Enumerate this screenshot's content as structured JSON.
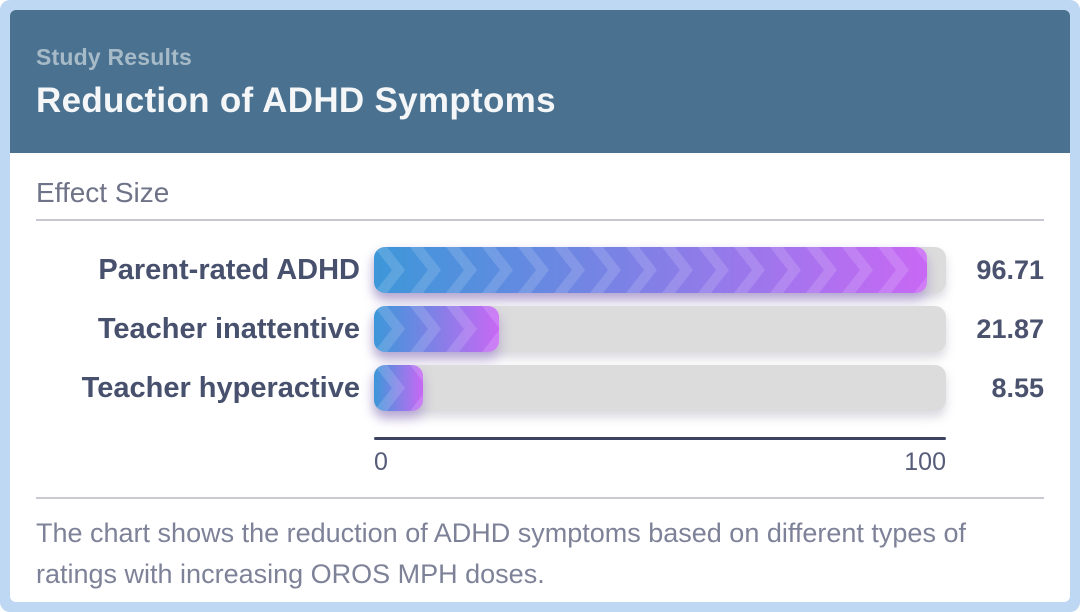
{
  "header": {
    "eyebrow": "Study Results",
    "title": "Reduction of ADHD Symptoms"
  },
  "section": {
    "label": "Effect Size"
  },
  "chart_data": {
    "type": "bar",
    "orientation": "horizontal",
    "categories": [
      "Parent-rated ADHD",
      "Teacher inattentive",
      "Teacher hyperactive"
    ],
    "values": [
      96.71,
      21.87,
      8.55
    ],
    "value_labels": [
      "96.71",
      "21.87",
      "8.55"
    ],
    "xlabel": "Effect Size",
    "ylabel": "",
    "xlim": [
      0,
      100
    ],
    "x_ticks": [
      "0",
      "100"
    ],
    "grid": false,
    "legend": false,
    "bar_gradient_start": "#3d97d9",
    "bar_gradient_end": "#c868f4",
    "track_color": "#dcdcdc"
  },
  "caption": "The chart shows the reduction of ADHD symptoms based on different types of ratings with increasing OROS MPH doses.",
  "colors": {
    "frame": "#bed7f3",
    "header_bg": "#4a7290",
    "title_text": "#f4f6f8",
    "eyebrow_text": "#a6bac8",
    "label_text": "#47506c",
    "axis": "#3c4462"
  }
}
